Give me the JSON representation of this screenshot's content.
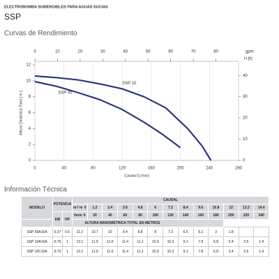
{
  "header": {
    "subtitle": "ELECTROBOMBA SUMERGIBLES PARA AGUAS SUCIAS",
    "title": "SSP",
    "section": "Curvas de Rendimiento"
  },
  "chart_data": {
    "type": "line",
    "xlabel": "Caudal [L/min]",
    "ylabel": "Altura Dinámica Total [ m ]",
    "x2label": "gpm",
    "y2label": "H [ft]",
    "xlim": [
      0,
      280
    ],
    "xticks": [
      0,
      40,
      80,
      120,
      160,
      200,
      240,
      280
    ],
    "ylim": [
      0,
      12
    ],
    "yticks": [
      0,
      2,
      4,
      6,
      8,
      10,
      12
    ],
    "x2lim": [
      0,
      90
    ],
    "x2ticks": [
      0,
      10,
      20,
      30,
      40,
      50,
      60,
      70,
      80
    ],
    "y2lim": [
      0,
      45
    ],
    "y2ticks": [
      0,
      10,
      20,
      30,
      40
    ],
    "grid": true,
    "series": [
      {
        "name": "SSP 10",
        "color": "#2b3580",
        "x": [
          0,
          30,
          60,
          90,
          120,
          150,
          180,
          210,
          230,
          242
        ],
        "values": [
          10.6,
          10.4,
          10.1,
          9.6,
          9.0,
          8.0,
          6.6,
          4.0,
          1.8,
          0
        ]
      },
      {
        "name": "SSP 05",
        "color": "#2b3580",
        "x": [
          0,
          30,
          60,
          90,
          120,
          150,
          175,
          200
        ],
        "values": [
          9.9,
          9.3,
          8.5,
          7.6,
          6.4,
          4.8,
          3.3,
          1.6
        ]
      }
    ]
  },
  "table": {
    "title": "Información Técnica",
    "model": "MODELO",
    "power": "POTENCIA",
    "kw": "kW",
    "hp": "HP",
    "flow": "CAUDAL",
    "unit_m3h": "m³/ hr",
    "unit_lmin": "l/min",
    "head": "ALTURA MANOMÉTRICA TOTAL EN METROS",
    "flow_m3h": [
      0,
      1.2,
      2.4,
      3.6,
      4.8,
      6,
      7.2,
      8.4,
      9.6,
      10.8,
      12,
      13.2,
      14.4
    ],
    "flow_lmin": [
      0,
      20,
      40,
      60,
      80,
      100,
      120,
      140,
      160,
      180,
      200,
      220,
      240
    ],
    "rows": [
      {
        "model": "SSP 05A16A",
        "kw": 0.37,
        "hp": 0.5,
        "heads": [
          11.2,
          10.7,
          10,
          9.4,
          8.8,
          8,
          7.3,
          6.6,
          5.2,
          3,
          1.8,
          null,
          null
        ]
      },
      {
        "model": "SSP 10A16A",
        "kw": 0.75,
        "hp": 1,
        "heads": [
          12.1,
          11.9,
          11.6,
          11.4,
          11.1,
          10.9,
          10.3,
          9.1,
          7.8,
          6.8,
          5.4,
          3.5,
          1.4
        ]
      },
      {
        "model": "SSP 10C16A",
        "kw": 0.75,
        "hp": 1,
        "heads": [
          12.1,
          11.9,
          11.6,
          11.4,
          11.1,
          10.9,
          10.3,
          9.1,
          7.8,
          6.8,
          5.4,
          3.5,
          1.4
        ]
      }
    ]
  }
}
